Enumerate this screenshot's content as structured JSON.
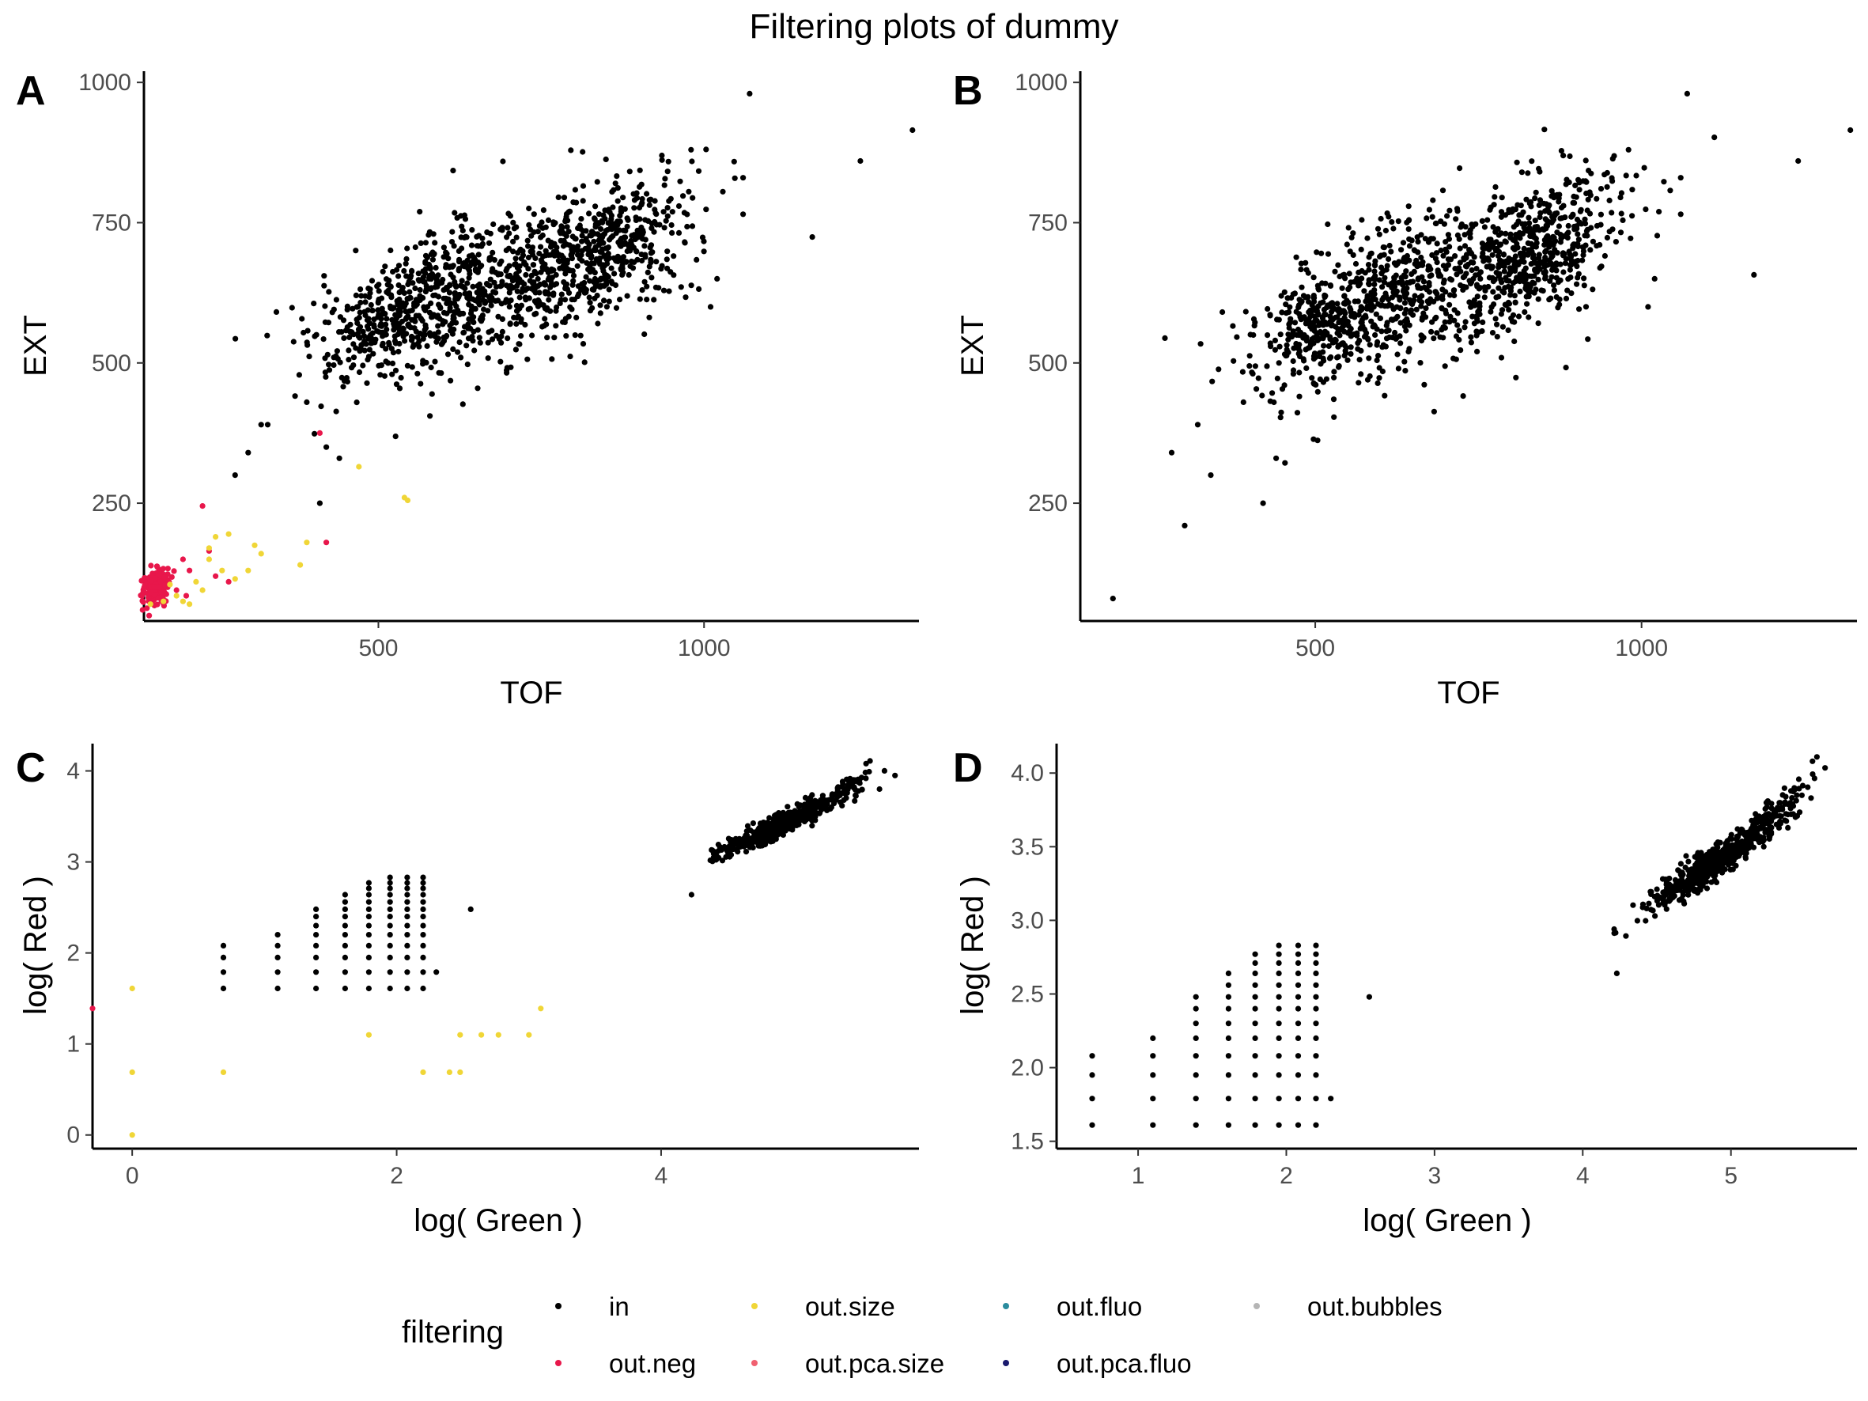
{
  "figure": {
    "title": "Filtering plots of dummy"
  },
  "chart_data": [
    {
      "panel": "A",
      "type": "scatter",
      "xlabel": "TOF",
      "ylabel": "EXT",
      "xlim": [
        140,
        1330
      ],
      "ylim": [
        40,
        1020
      ],
      "xticks": [
        500,
        1000
      ],
      "yticks": [
        250,
        500,
        750,
        1000
      ],
      "groups": [
        {
          "category": "in",
          "generated": [
            {
              "cx": 520,
              "cy": 570,
              "sx": 60,
              "sy": 55,
              "rho": 0.45,
              "n": 330
            },
            {
              "cx": 640,
              "cy": 650,
              "sx": 70,
              "sy": 65,
              "rho": 0.35,
              "n": 320
            },
            {
              "cx": 830,
              "cy": 700,
              "sx": 70,
              "sy": 65,
              "rho": 0.55,
              "n": 520
            },
            {
              "cx": 700,
              "cy": 610,
              "sx": 140,
              "sy": 90,
              "rho": 0.6,
              "n": 180
            }
          ],
          "points": [
            [
              1320,
              915
            ],
            [
              1240,
              860
            ],
            [
              1070,
              980
            ],
            [
              1060,
              830
            ],
            [
              1060,
              765
            ],
            [
              1010,
              600
            ],
            [
              1020,
              650
            ],
            [
              980,
              880
            ],
            [
              300,
              340
            ],
            [
              320,
              390
            ],
            [
              280,
              300
            ],
            [
              420,
              350
            ],
            [
              440,
              330
            ],
            [
              410,
              250
            ],
            [
              330,
              390
            ],
            [
              390,
              430
            ]
          ]
        },
        {
          "category": "out.neg",
          "generated": [
            {
              "cx": 158,
              "cy": 100,
              "sx": 10,
              "sy": 18,
              "rho": 0.2,
              "n": 190
            }
          ],
          "points": [
            [
              230,
              245
            ],
            [
              240,
              165
            ],
            [
              200,
              150
            ],
            [
              210,
              130
            ],
            [
              250,
              120
            ],
            [
              270,
              110
            ],
            [
              420,
              180
            ],
            [
              410,
              375
            ],
            [
              190,
              95
            ],
            [
              205,
              85
            ]
          ]
        },
        {
          "category": "out.size",
          "generated": [],
          "points": [
            [
              180,
              105
            ],
            [
              190,
              85
            ],
            [
              200,
              75
            ],
            [
              220,
              110
            ],
            [
              240,
              150
            ],
            [
              240,
              170
            ],
            [
              250,
              190
            ],
            [
              270,
              195
            ],
            [
              280,
              115
            ],
            [
              260,
              130
            ],
            [
              300,
              130
            ],
            [
              310,
              175
            ],
            [
              320,
              160
            ],
            [
              380,
              140
            ],
            [
              390,
              180
            ],
            [
              470,
              315
            ],
            [
              540,
              260
            ],
            [
              545,
              255
            ],
            [
              210,
              70
            ],
            [
              230,
              95
            ],
            [
              170,
              75
            ],
            [
              150,
              70
            ]
          ]
        }
      ]
    },
    {
      "panel": "B",
      "type": "scatter",
      "xlabel": "TOF",
      "ylabel": "EXT",
      "xlim": [
        140,
        1330
      ],
      "ylim": [
        40,
        1020
      ],
      "xticks": [
        500,
        1000
      ],
      "yticks": [
        250,
        500,
        750,
        1000
      ],
      "groups": [
        {
          "category": "in",
          "generated": [
            {
              "cx": 520,
              "cy": 570,
              "sx": 60,
              "sy": 55,
              "rho": 0.45,
              "n": 330
            },
            {
              "cx": 640,
              "cy": 650,
              "sx": 70,
              "sy": 65,
              "rho": 0.35,
              "n": 320
            },
            {
              "cx": 830,
              "cy": 700,
              "sx": 70,
              "sy": 65,
              "rho": 0.55,
              "n": 520
            },
            {
              "cx": 700,
              "cy": 610,
              "sx": 140,
              "sy": 90,
              "rho": 0.6,
              "n": 180
            }
          ],
          "points": [
            [
              190,
              80
            ],
            [
              300,
              210
            ],
            [
              320,
              390
            ],
            [
              340,
              300
            ],
            [
              280,
              340
            ],
            [
              420,
              250
            ],
            [
              1320,
              915
            ],
            [
              1240,
              860
            ],
            [
              1070,
              980
            ],
            [
              1060,
              830
            ],
            [
              1060,
              765
            ],
            [
              1010,
              600
            ],
            [
              1020,
              650
            ],
            [
              980,
              880
            ],
            [
              440,
              330
            ],
            [
              390,
              430
            ]
          ]
        }
      ]
    },
    {
      "panel": "C",
      "type": "scatter",
      "xlabel": "log( Green )",
      "ylabel": "log( Red )",
      "xlim": [
        -0.3,
        5.95
      ],
      "ylim": [
        -0.15,
        4.3
      ],
      "xticks": [
        0,
        2,
        4
      ],
      "yticks": [
        0,
        1,
        2,
        3,
        4
      ],
      "groups": [
        {
          "category": "in",
          "generated": [
            {
              "cx": 4.9,
              "cy": 3.4,
              "sx": 0.22,
              "sy": 0.16,
              "rho": 0.93,
              "n": 560
            },
            {
              "cx": 5.35,
              "cy": 3.8,
              "sx": 0.12,
              "sy": 0.1,
              "rho": 0.9,
              "n": 50
            }
          ],
          "grid": {
            "xs": [
              0.69,
              1.1,
              1.39,
              1.61,
              1.79,
              1.95,
              2.08,
              2.2
            ],
            "yvals": [
              1.61,
              1.79,
              1.95,
              2.08,
              2.2,
              2.3,
              2.4,
              2.48,
              2.56,
              2.64,
              2.71,
              2.77,
              2.83
            ]
          },
          "points": [
            [
              2.3,
              1.79
            ],
            [
              2.56,
              2.48
            ],
            [
              4.23,
              2.64
            ],
            [
              5.58,
              4.11
            ],
            [
              5.55,
              4.08
            ]
          ]
        },
        {
          "category": "out.size",
          "generated": [],
          "points": [
            [
              0.0,
              1.61
            ],
            [
              0.0,
              0.69
            ],
            [
              0.0,
              0.0
            ],
            [
              0.69,
              0.69
            ],
            [
              1.79,
              1.1
            ],
            [
              2.2,
              0.69
            ],
            [
              2.4,
              0.69
            ],
            [
              2.48,
              0.69
            ],
            [
              2.48,
              1.1
            ],
            [
              2.64,
              1.1
            ],
            [
              2.77,
              1.1
            ],
            [
              3.0,
              1.1
            ],
            [
              3.09,
              1.39
            ]
          ]
        },
        {
          "category": "out.neg",
          "generated": [],
          "points": [
            [
              -0.3,
              1.39
            ]
          ]
        }
      ]
    },
    {
      "panel": "D",
      "type": "scatter",
      "xlabel": "log( Green )",
      "ylabel": "log( Red )",
      "xlim": [
        0.45,
        5.85
      ],
      "ylim": [
        1.45,
        4.2
      ],
      "xticks": [
        1,
        2,
        3,
        4,
        5
      ],
      "yticks": [
        1.5,
        2.0,
        2.5,
        3.0,
        3.5,
        4.0
      ],
      "ytick_labels": [
        "1.5",
        "2.0",
        "2.5",
        "3.0",
        "3.5",
        "4.0"
      ],
      "groups": [
        {
          "category": "in",
          "generated": [
            {
              "cx": 4.9,
              "cy": 3.4,
              "sx": 0.22,
              "sy": 0.16,
              "rho": 0.93,
              "n": 560
            },
            {
              "cx": 5.35,
              "cy": 3.8,
              "sx": 0.12,
              "sy": 0.1,
              "rho": 0.9,
              "n": 50
            }
          ],
          "grid": {
            "xs": [
              0.69,
              1.1,
              1.39,
              1.61,
              1.79,
              1.95,
              2.08,
              2.2
            ],
            "yvals": [
              1.61,
              1.79,
              1.95,
              2.08,
              2.2,
              2.3,
              2.4,
              2.48,
              2.56,
              2.64,
              2.71,
              2.77,
              2.83
            ]
          },
          "points": [
            [
              2.3,
              1.79
            ],
            [
              2.56,
              2.48
            ],
            [
              4.23,
              2.64
            ],
            [
              5.58,
              4.11
            ],
            [
              5.55,
              4.08
            ]
          ]
        }
      ]
    }
  ],
  "legend": {
    "title": "filtering",
    "position": "bottom",
    "items": [
      {
        "label": "in",
        "color": "#000000"
      },
      {
        "label": "out.size",
        "color": "#F0D637"
      },
      {
        "label": "out.fluo",
        "color": "#2B8C9E"
      },
      {
        "label": "out.bubbles",
        "color": "#B5B5B5"
      },
      {
        "label": "out.neg",
        "color": "#E8174B"
      },
      {
        "label": "out.pca.size",
        "color": "#F06070"
      },
      {
        "label": "out.pca.fluo",
        "color": "#1A1A6E"
      }
    ]
  }
}
